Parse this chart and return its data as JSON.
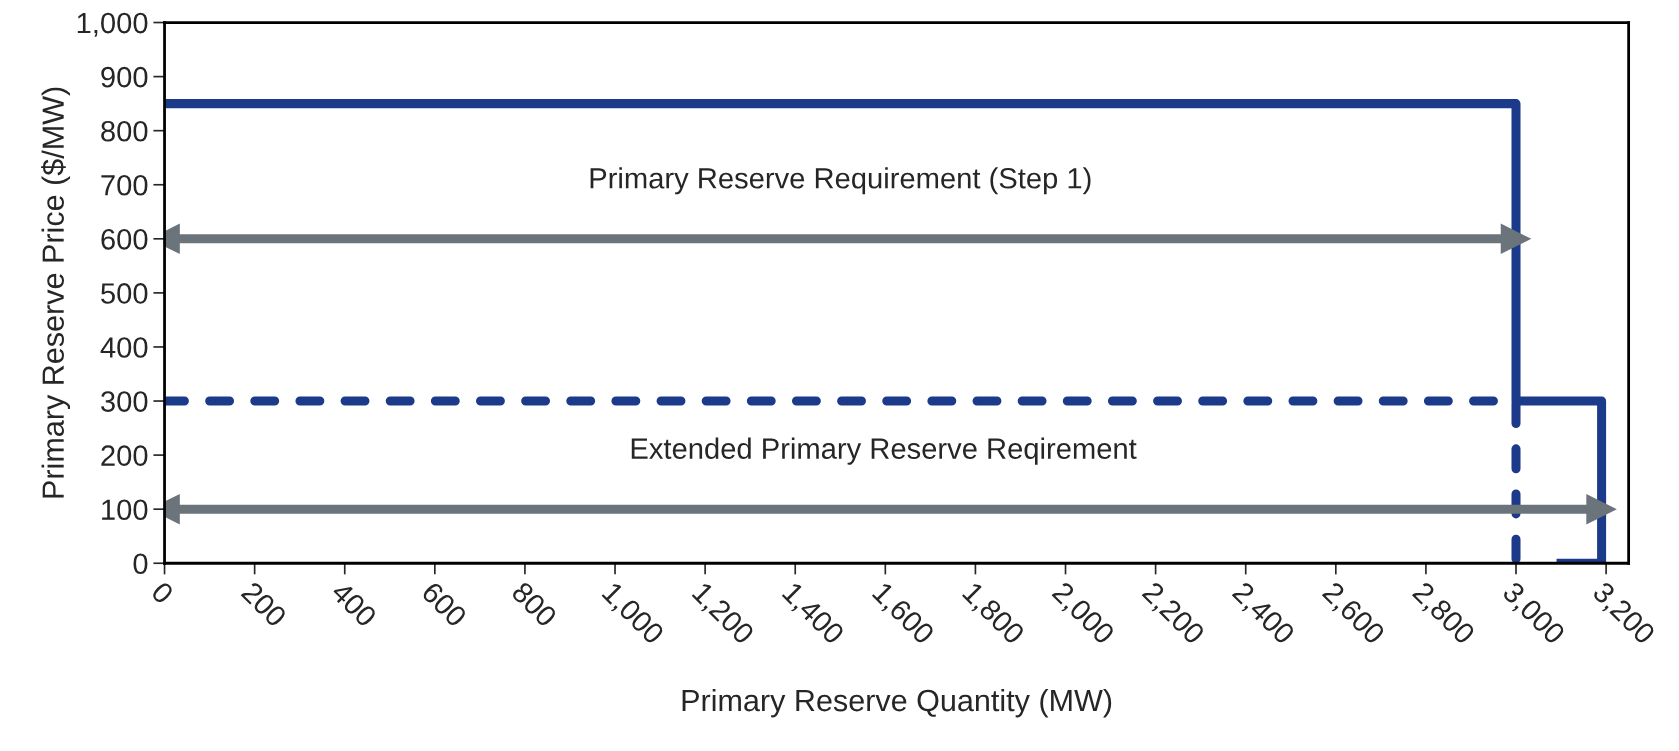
{
  "chart_data": {
    "type": "line",
    "xlabel": "Primary Reserve Quantity (MW)",
    "ylabel": "Primary Reserve Price ($/MW)",
    "xlim": [
      0,
      3250
    ],
    "ylim": [
      0,
      1000
    ],
    "xticks": [
      {
        "value": 0,
        "label": "0"
      },
      {
        "value": 200,
        "label": "200"
      },
      {
        "value": 400,
        "label": "400"
      },
      {
        "value": 600,
        "label": "600"
      },
      {
        "value": 800,
        "label": "800"
      },
      {
        "value": 1000,
        "label": "1,000"
      },
      {
        "value": 1200,
        "label": "1,200"
      },
      {
        "value": 1400,
        "label": "1,400"
      },
      {
        "value": 1600,
        "label": "1,600"
      },
      {
        "value": 1800,
        "label": "1,800"
      },
      {
        "value": 2000,
        "label": "2,000"
      },
      {
        "value": 2200,
        "label": "2,200"
      },
      {
        "value": 2400,
        "label": "2,400"
      },
      {
        "value": 2600,
        "label": "2,600"
      },
      {
        "value": 2800,
        "label": "2,800"
      },
      {
        "value": 3000,
        "label": "3,000"
      },
      {
        "value": 3200,
        "label": "3,200"
      }
    ],
    "yticks": [
      0,
      100,
      200,
      300,
      400,
      500,
      600,
      700,
      800,
      900,
      {
        "value": 1000,
        "label": "1,000"
      }
    ],
    "grid": false,
    "legend": false,
    "series": [
      {
        "color": "#1b3a8a",
        "line_style": "solid",
        "x": [
          0,
          3000,
          3000,
          3190,
          3190,
          3090
        ],
        "values": [
          850,
          850,
          300,
          300,
          0,
          0
        ]
      },
      {
        "color": "#1b3a8a",
        "line_style": "dashed",
        "x": [
          0,
          3000,
          3000
        ],
        "values": [
          300,
          300,
          0
        ]
      },
      {
        "color": "#6b737b",
        "line_style": "solid",
        "marker": "triangle",
        "x": [
          0,
          3000
        ],
        "values": [
          600,
          600
        ]
      },
      {
        "color": "#6b737b",
        "line_style": "solid",
        "marker": "triangle",
        "x": [
          0,
          3190
        ],
        "values": [
          100,
          100
        ]
      }
    ],
    "annotations": [
      "Primary Reserve Requirement (Step 1)",
      "Extended Primary Reserve Reqirement"
    ]
  }
}
